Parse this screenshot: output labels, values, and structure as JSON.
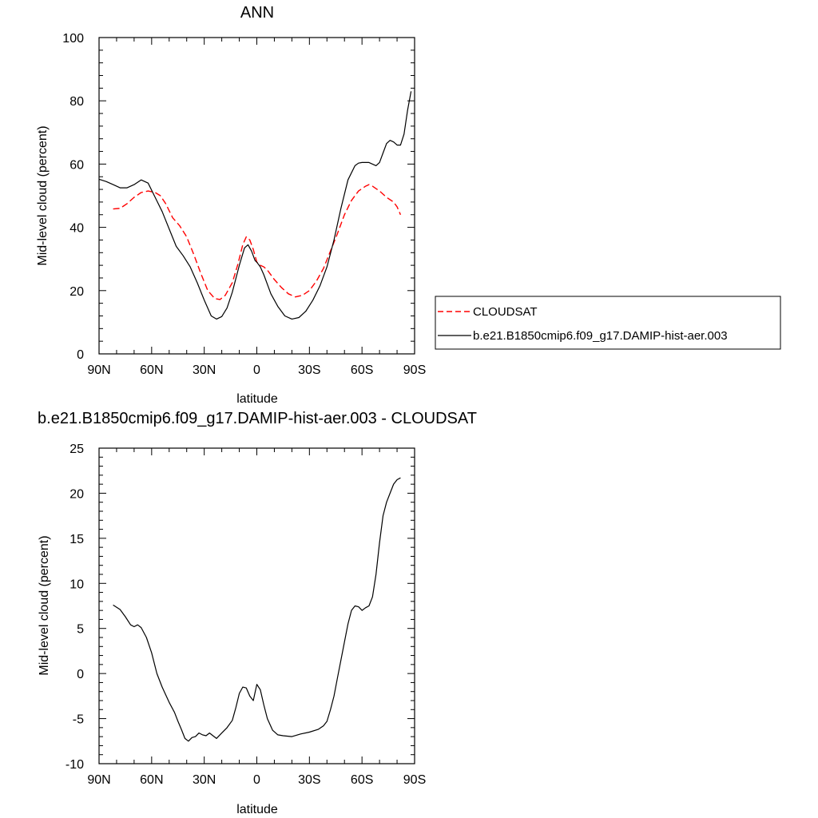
{
  "chart_data": [
    {
      "type": "line",
      "title": "ANN",
      "xlabel": "latitude",
      "ylabel": "Mid-level cloud (percent)",
      "xlim": [
        90,
        -90
      ],
      "ylim": [
        0,
        100
      ],
      "x_ticks": [
        90,
        60,
        30,
        0,
        -30,
        -60,
        -90
      ],
      "x_tick_labels": [
        "90N",
        "60N",
        "30N",
        "0",
        "30S",
        "60S",
        "90S"
      ],
      "y_ticks": [
        0,
        20,
        40,
        60,
        80,
        100
      ],
      "y_tick_labels": [
        "0",
        "20",
        "40",
        "60",
        "80",
        "100"
      ],
      "grid": false,
      "legend": {
        "placement": "right",
        "entries": [
          "CLOUDSAT",
          "b.e21.B1850cmip6.f09_g17.DAMIP-hist-aer.003"
        ]
      },
      "series": [
        {
          "name": "CLOUDSAT",
          "color": "#ff0000",
          "dash": "dashed",
          "x": [
            82,
            78,
            74,
            70,
            66,
            62,
            58,
            55,
            52,
            48,
            44,
            40,
            36,
            32,
            28,
            24,
            21,
            18,
            14,
            11,
            8,
            6,
            4,
            2,
            0,
            -2,
            -4,
            -6,
            -10,
            -14,
            -18,
            -22,
            -26,
            -30,
            -34,
            -38,
            -42,
            -46,
            -50,
            -54,
            -58,
            -62,
            -64,
            -66,
            -70,
            -74,
            -78,
            -80,
            -82
          ],
          "y": [
            45.8,
            46,
            47.5,
            49.5,
            51,
            51.5,
            51,
            50,
            47.5,
            43,
            40.5,
            37,
            31.5,
            25.5,
            20,
            17.5,
            17.2,
            18.5,
            22.5,
            28,
            34.5,
            37,
            36,
            33,
            29,
            28,
            27.5,
            26.5,
            23.5,
            21,
            19,
            18,
            18.5,
            20,
            23,
            27,
            32.5,
            38,
            44,
            48.5,
            51.5,
            53,
            53.5,
            53,
            51.5,
            49.5,
            48,
            46.5,
            44
          ]
        },
        {
          "name": "b.e21.B1850cmip6.f09_g17.DAMIP-hist-aer.003",
          "color": "#000000",
          "dash": "solid",
          "x": [
            90,
            86,
            82,
            78,
            74,
            70,
            66,
            62,
            58,
            54,
            50,
            46,
            42,
            38,
            34,
            30,
            26,
            23,
            20,
            17,
            14,
            10,
            7,
            5,
            3,
            1,
            0,
            -2,
            -4,
            -8,
            -12,
            -16,
            -20,
            -24,
            -28,
            -32,
            -36,
            -40,
            -44,
            -48,
            -52,
            -56,
            -58,
            -60,
            -62,
            -64,
            -66,
            -68,
            -70,
            -72,
            -74,
            -76,
            -78,
            -80,
            -82,
            -84,
            -86,
            -88
          ],
          "y": [
            55.2,
            54.5,
            53.5,
            52.5,
            52.5,
            53.5,
            55,
            54,
            49.5,
            45,
            39.5,
            34,
            31,
            27.5,
            22.5,
            17,
            12,
            11,
            11.8,
            14.5,
            19.5,
            28,
            33.5,
            34.5,
            32.5,
            29.5,
            29,
            27.5,
            25,
            19,
            15,
            12,
            11,
            11.5,
            13.5,
            17,
            21.5,
            27.5,
            36,
            46,
            55,
            59.5,
            60.3,
            60.5,
            60.5,
            60.5,
            60,
            59.5,
            60.5,
            63.5,
            66.5,
            67.5,
            67,
            66,
            66,
            69.5,
            77,
            83
          ]
        }
      ]
    },
    {
      "type": "line",
      "title": "b.e21.B1850cmip6.f09_g17.DAMIP-hist-aer.003 - CLOUDSAT",
      "xlabel": "latitude",
      "ylabel": "Mid-level cloud (percent)",
      "xlim": [
        90,
        -90
      ],
      "ylim": [
        -10,
        25
      ],
      "x_ticks": [
        90,
        60,
        30,
        0,
        -30,
        -60,
        -90
      ],
      "x_tick_labels": [
        "90N",
        "60N",
        "30N",
        "0",
        "30S",
        "60S",
        "90S"
      ],
      "y_ticks": [
        -10,
        -5,
        0,
        5,
        10,
        15,
        20,
        25
      ],
      "y_tick_labels": [
        "-10",
        "-5",
        "0",
        "5",
        "10",
        "15",
        "20",
        "25"
      ],
      "grid": false,
      "series": [
        {
          "color": "#000000",
          "dash": "solid",
          "x": [
            82,
            78,
            75,
            72,
            70,
            68,
            66,
            63,
            60,
            57,
            54,
            50,
            47,
            45,
            43,
            41,
            39,
            37,
            35,
            33,
            31,
            29,
            27,
            25,
            23,
            20,
            17,
            14,
            12,
            10,
            8,
            6,
            4,
            2,
            0,
            -2,
            -4,
            -6,
            -9,
            -12,
            -15,
            -20,
            -25,
            -30,
            -35,
            -38,
            -40,
            -42,
            -44,
            -46,
            -48,
            -50,
            -52,
            -54,
            -56,
            -58,
            -60,
            -62,
            -64,
            -66,
            -68,
            -70,
            -72,
            -74,
            -76,
            -78,
            -80,
            -82
          ],
          "y": [
            7.6,
            7.1,
            6.3,
            5.4,
            5.2,
            5.4,
            5.1,
            4,
            2.3,
            0,
            -1.5,
            -3.2,
            -4.3,
            -5.3,
            -6.2,
            -7.2,
            -7.5,
            -7.1,
            -7,
            -6.6,
            -6.8,
            -6.9,
            -6.6,
            -6.9,
            -7.2,
            -6.6,
            -6,
            -5.2,
            -3.8,
            -2.2,
            -1.5,
            -1.6,
            -2.5,
            -3,
            -1.2,
            -1.8,
            -3.5,
            -5,
            -6.3,
            -6.8,
            -6.9,
            -7,
            -6.7,
            -6.5,
            -6.2,
            -5.8,
            -5.3,
            -4,
            -2.5,
            -0.5,
            1.5,
            3.5,
            5.5,
            7,
            7.5,
            7.4,
            7,
            7.3,
            7.5,
            8.5,
            11,
            14.5,
            17.5,
            19,
            20,
            21,
            21.5,
            21.7
          ]
        }
      ]
    }
  ]
}
